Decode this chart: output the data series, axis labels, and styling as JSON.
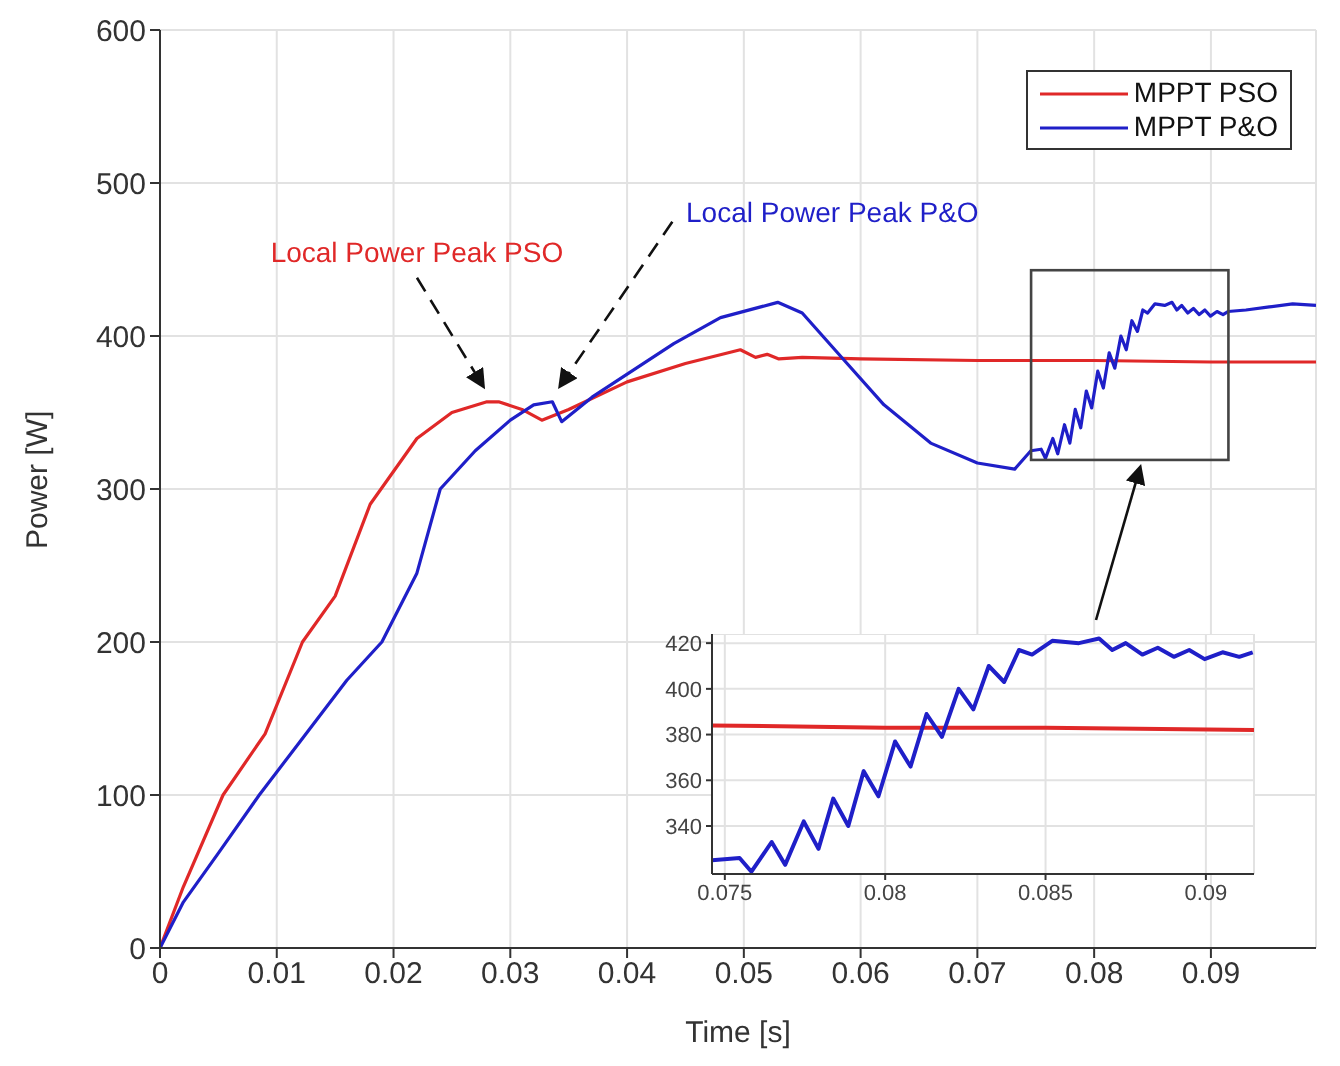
{
  "chart_data": [
    {
      "type": "line",
      "xlabel": "Time [s]",
      "ylabel": "Power [W]",
      "xlim": [
        0,
        0.099
      ],
      "ylim": [
        0,
        600
      ],
      "xticks": [
        0,
        0.01,
        0.02,
        0.03,
        0.04,
        0.05,
        0.06,
        0.07,
        0.08,
        0.09
      ],
      "yticks": [
        0,
        100,
        200,
        300,
        400,
        500,
        600
      ],
      "grid": true,
      "legend": "top right",
      "annotations": [
        {
          "text": "Local Power Peak PSO",
          "x": 0.028,
          "y": 357
        },
        {
          "text": "Local Power Peak P&O",
          "x": 0.0336,
          "y": 357
        }
      ],
      "series": [
        {
          "name": "MPPT PSO",
          "color": "#e02828",
          "x": [
            0,
            0.002,
            0.0054,
            0.009,
            0.0122,
            0.015,
            0.018,
            0.022,
            0.025,
            0.028,
            0.029,
            0.031,
            0.0327,
            0.035,
            0.04,
            0.045,
            0.0497,
            0.051,
            0.052,
            0.053,
            0.055,
            0.06,
            0.07,
            0.08,
            0.09,
            0.099
          ],
          "values": [
            0,
            40,
            100,
            140,
            200,
            230,
            290,
            333,
            350,
            357,
            357,
            352,
            345,
            352,
            370,
            382,
            391,
            386,
            388,
            385,
            386,
            385,
            384,
            384,
            383,
            383
          ]
        },
        {
          "name": "MPPT P&O",
          "color": "#1f1fc8",
          "x": [
            0,
            0.002,
            0.005,
            0.0085,
            0.012,
            0.016,
            0.019,
            0.022,
            0.024,
            0.027,
            0.03,
            0.032,
            0.0336,
            0.0344,
            0.037,
            0.044,
            0.048,
            0.0529,
            0.055,
            0.0585,
            0.062,
            0.066,
            0.07,
            0.0732,
            0.07458,
            0.07546,
            0.07583,
            0.07646,
            0.07688,
            0.07746,
            0.07792,
            0.07838,
            0.07885,
            0.07933,
            0.07979,
            0.08031,
            0.08079,
            0.08129,
            0.08177,
            0.08229,
            0.08275,
            0.08323,
            0.08371,
            0.08417,
            0.08458,
            0.08521,
            0.08604,
            0.08667,
            0.08708,
            0.0875,
            0.08802,
            0.0885,
            0.089,
            0.08948,
            0.08996,
            0.09052,
            0.09104,
            0.09146,
            0.093,
            0.095,
            0.097,
            0.099
          ],
          "values": [
            0,
            30,
            62,
            100,
            135,
            175,
            200,
            245,
            300,
            325,
            345,
            355,
            357,
            344,
            360,
            395,
            412,
            422,
            415,
            385,
            355,
            330,
            317,
            313,
            325,
            326,
            320,
            333,
            323,
            342,
            330,
            352,
            340,
            364,
            353,
            377,
            366,
            389,
            379,
            400,
            391,
            410,
            403,
            417,
            415,
            421,
            420,
            422,
            417,
            420,
            415,
            418,
            414,
            417,
            413,
            416,
            414,
            416,
            417,
            419,
            421,
            420
          ]
        }
      ]
    },
    {
      "type": "line",
      "xlim": [
        0.0746,
        0.0915
      ],
      "ylim": [
        319,
        424
      ],
      "xticks": [
        0.075,
        0.08,
        0.085,
        0.09
      ],
      "yticks": [
        340,
        360,
        380,
        400,
        420
      ],
      "grid": true,
      "series": [
        {
          "color": "#e02828",
          "x": [
            0.0746,
            0.08,
            0.085,
            0.0915
          ],
          "values": [
            384,
            383,
            383,
            382
          ]
        },
        {
          "color": "#1f1fc8",
          "x": [
            0.0746,
            0.07546,
            0.07583,
            0.07646,
            0.07688,
            0.07746,
            0.07792,
            0.07838,
            0.07885,
            0.07933,
            0.07979,
            0.08031,
            0.08079,
            0.08129,
            0.08177,
            0.08229,
            0.08275,
            0.08323,
            0.08371,
            0.08417,
            0.08458,
            0.08521,
            0.08604,
            0.08667,
            0.08708,
            0.0875,
            0.08802,
            0.0885,
            0.089,
            0.08948,
            0.08996,
            0.09052,
            0.09104,
            0.09146
          ],
          "values": [
            325,
            326,
            320,
            333,
            323,
            342,
            330,
            352,
            340,
            364,
            353,
            377,
            366,
            389,
            379,
            400,
            391,
            410,
            403,
            417,
            415,
            421,
            420,
            422,
            417,
            420,
            415,
            418,
            414,
            417,
            413,
            416,
            414,
            416
          ]
        }
      ]
    }
  ]
}
